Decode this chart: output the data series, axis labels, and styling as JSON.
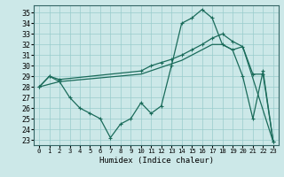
{
  "bg_color": "#cce8e8",
  "grid_color": "#99cccc",
  "line_color": "#1a6b5a",
  "xlabel": "Humidex (Indice chaleur)",
  "xlim": [
    -0.5,
    23.5
  ],
  "ylim": [
    22.5,
    35.7
  ],
  "xticks": [
    0,
    1,
    2,
    3,
    4,
    5,
    6,
    7,
    8,
    9,
    10,
    11,
    12,
    13,
    14,
    15,
    16,
    17,
    18,
    19,
    20,
    21,
    22,
    23
  ],
  "yticks": [
    23,
    24,
    25,
    26,
    27,
    28,
    29,
    30,
    31,
    32,
    33,
    34,
    35
  ],
  "series1_x": [
    0,
    1,
    2,
    3,
    4,
    5,
    6,
    7,
    8,
    9,
    10,
    11,
    12,
    13,
    14,
    15,
    16,
    17,
    18,
    19,
    20,
    21,
    22,
    23
  ],
  "series1_y": [
    28.0,
    29.0,
    28.5,
    27.0,
    26.0,
    25.5,
    25.0,
    23.2,
    24.5,
    25.0,
    26.5,
    25.5,
    26.2,
    30.0,
    34.0,
    34.5,
    35.3,
    34.5,
    32.0,
    31.5,
    29.0,
    25.0,
    29.5,
    22.8
  ],
  "series2_x": [
    0,
    1,
    2,
    10,
    11,
    12,
    13,
    14,
    15,
    16,
    17,
    18,
    19,
    20,
    21,
    22,
    23
  ],
  "series2_y": [
    28.0,
    29.0,
    28.7,
    29.5,
    30.0,
    30.3,
    30.6,
    31.0,
    31.5,
    32.0,
    32.6,
    33.0,
    32.3,
    31.8,
    29.2,
    29.2,
    22.8
  ],
  "series3_x": [
    0,
    2,
    10,
    14,
    15,
    16,
    17,
    18,
    19,
    20,
    23
  ],
  "series3_y": [
    28.0,
    28.5,
    29.2,
    30.5,
    31.0,
    31.5,
    32.0,
    32.0,
    31.5,
    31.8,
    22.8
  ]
}
